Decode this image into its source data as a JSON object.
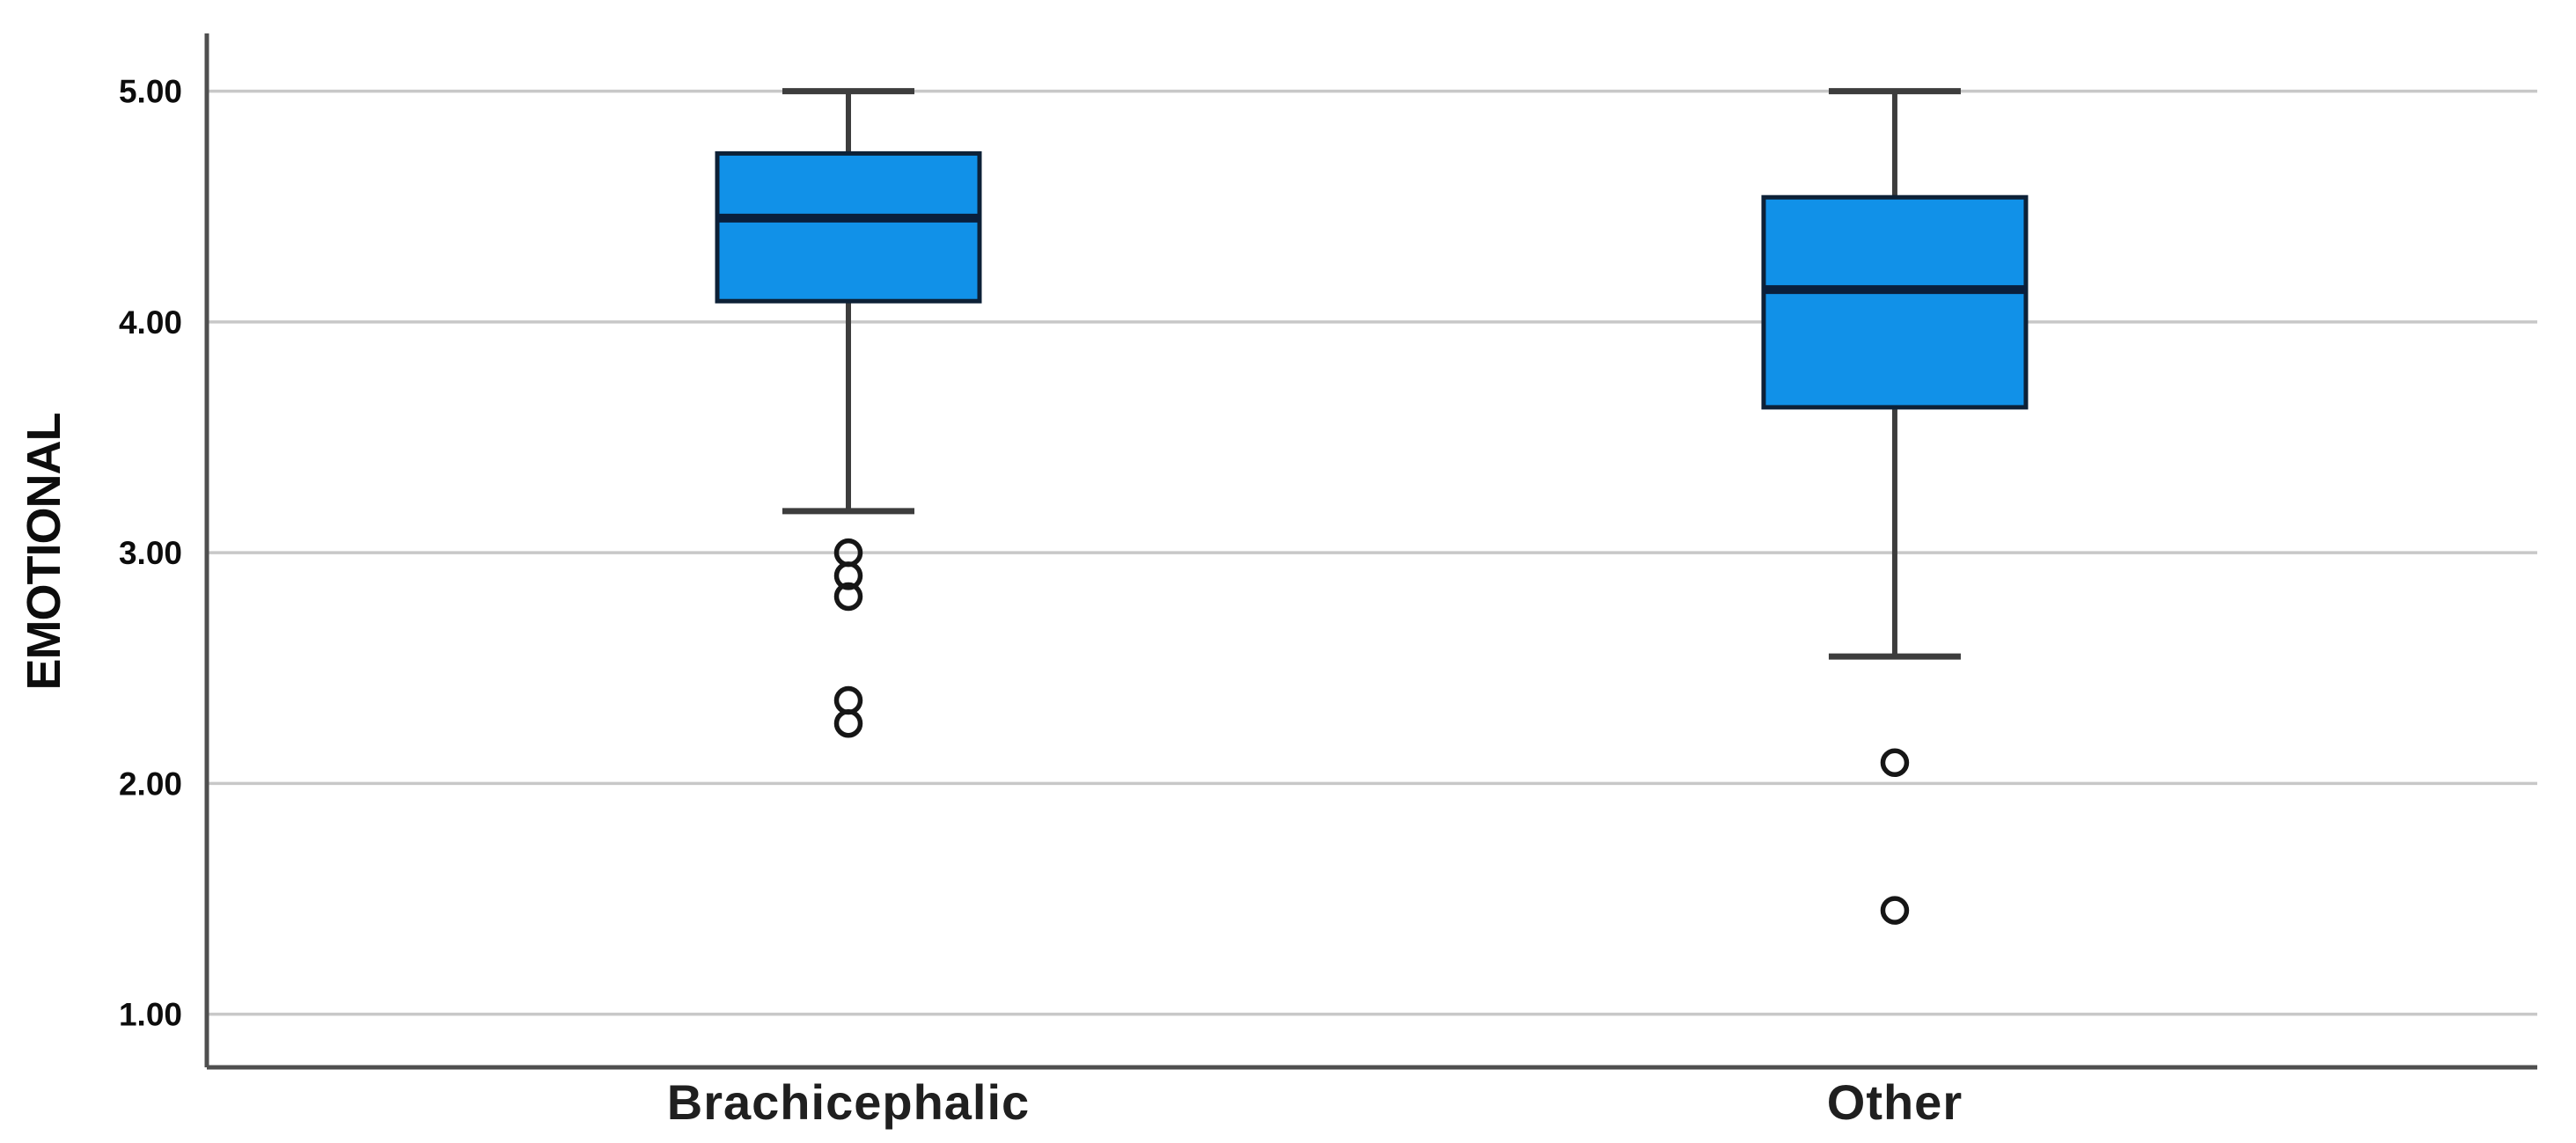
{
  "chart_data": {
    "type": "boxplot",
    "title": "",
    "ylabel": "EMOTIONAL",
    "xlabel": "",
    "categories": [
      "Brachicephalic",
      "Other"
    ],
    "y_ticks": [
      {
        "label": "5.00",
        "value": 5.0
      },
      {
        "label": "4.00",
        "value": 4.0
      },
      {
        "label": "3.00",
        "value": 3.0
      },
      {
        "label": "2.00",
        "value": 2.0
      },
      {
        "label": "1.00",
        "value": 1.0
      }
    ],
    "ylim": [
      0.77,
      5.25
    ],
    "grid": "horizontal",
    "legend": "none",
    "series": [
      {
        "category": "Brachicephalic",
        "whisker_high": 5.0,
        "q3": 4.73,
        "median": 4.45,
        "q1": 4.09,
        "whisker_low": 3.18,
        "outliers": [
          3.0,
          2.9,
          2.81,
          2.36,
          2.26
        ]
      },
      {
        "category": "Other",
        "whisker_high": 5.0,
        "q3": 4.54,
        "median": 4.14,
        "q1": 3.63,
        "whisker_low": 2.55,
        "outliers": [
          2.09,
          1.45
        ]
      }
    ],
    "colors": {
      "box_fill": "#1191E8",
      "box_border": "#0d2137",
      "median_line": "#0a1f3c",
      "whisker": "#3d3d3d",
      "outlier_stroke": "#161616",
      "gridline": "#c8c8c8",
      "axis_line": "#4f4f4f",
      "background": "#ffffff"
    }
  }
}
